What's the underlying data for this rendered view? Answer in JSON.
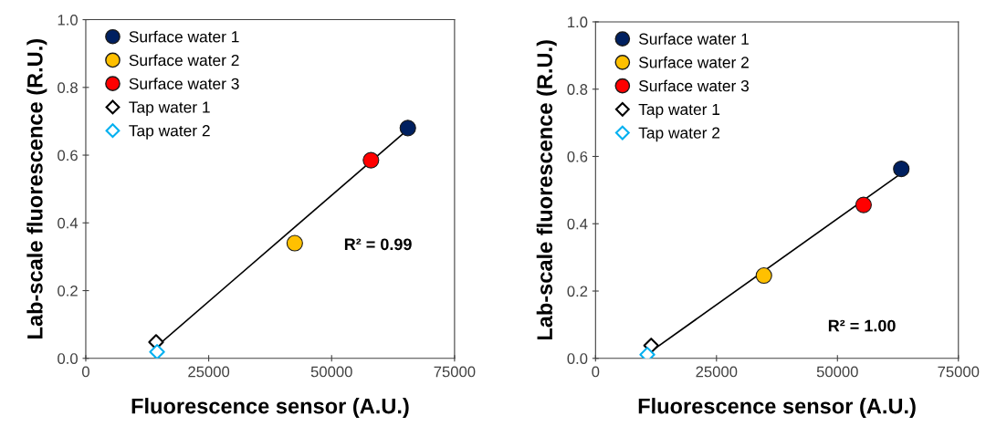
{
  "chart_data": [
    {
      "type": "scatter",
      "xlabel": "Fluorescence sensor (A.U.)",
      "ylabel": "Lab-scale fluorescence (R.U.)",
      "annotations": [
        "R² = 0.99"
      ],
      "xlim": [
        0,
        75000
      ],
      "xticks": [
        0,
        25000,
        50000,
        75000
      ],
      "ylim": [
        0,
        1.0
      ],
      "yticks": [
        {
          "value": 0,
          "label": "0.0"
        },
        {
          "value": 0.2,
          "label": "0.2"
        },
        {
          "value": 0.4,
          "label": "0.4"
        },
        {
          "value": 0.6,
          "label": "0.6"
        },
        {
          "value": 0.8,
          "label": "0.8"
        },
        {
          "value": 1.0,
          "label": "1.0"
        }
      ],
      "grid": false,
      "legend": "top left",
      "series": [
        {
          "type": "line",
          "color": "#000000",
          "marker": "none",
          "line_style": "solid",
          "x": [
            14400,
            65200
          ],
          "values": [
            0.035,
            0.672
          ]
        },
        {
          "name": "Surface water 1",
          "color": "#002060",
          "marker": "circle",
          "x": [
            65500
          ],
          "values": [
            0.68
          ]
        },
        {
          "name": "Surface water 2",
          "color": "#ffc000",
          "marker": "circle",
          "x": [
            42500
          ],
          "values": [
            0.34
          ]
        },
        {
          "name": "Surface water 3",
          "color": "#ff0000",
          "marker": "circle",
          "x": [
            58000
          ],
          "values": [
            0.585
          ]
        },
        {
          "name": "Tap water 1",
          "color": "#000000",
          "marker": "diamond",
          "x": [
            14300
          ],
          "values": [
            0.048
          ]
        },
        {
          "name": "Tap water 2",
          "color": "#00b0f0",
          "marker": "diamond",
          "x": [
            14500
          ],
          "values": [
            0.019
          ]
        }
      ]
    },
    {
      "type": "scatter",
      "xlabel": "Fluorescence sensor (A.U.)",
      "ylabel": "Lab-scale fluorescence (R.U.)",
      "annotations": [
        "R² = 1.00"
      ],
      "xlim": [
        0,
        75000
      ],
      "xticks": [
        0,
        25000,
        50000,
        75000
      ],
      "ylim": [
        0,
        1.0
      ],
      "yticks": [
        {
          "value": 0,
          "label": "0.0"
        },
        {
          "value": 0.2,
          "label": "0.2"
        },
        {
          "value": 0.4,
          "label": "0.4"
        },
        {
          "value": 0.6,
          "label": "0.6"
        },
        {
          "value": 0.8,
          "label": "0.8"
        },
        {
          "value": 1.0,
          "label": "1.0"
        }
      ],
      "grid": false,
      "legend": "top left",
      "series": [
        {
          "type": "line",
          "color": "#000000",
          "marker": "none",
          "line_style": "solid",
          "x": [
            11200,
            63100
          ],
          "values": [
            0.018,
            0.549
          ]
        },
        {
          "name": "Surface water 1",
          "color": "#002060",
          "marker": "circle",
          "x": [
            63200
          ],
          "values": [
            0.563
          ]
        },
        {
          "name": "Surface water 2",
          "color": "#ffc000",
          "marker": "circle",
          "x": [
            34800
          ],
          "values": [
            0.246
          ]
        },
        {
          "name": "Surface water 3",
          "color": "#ff0000",
          "marker": "circle",
          "x": [
            55400
          ],
          "values": [
            0.456
          ]
        },
        {
          "name": "Tap water 1",
          "color": "#000000",
          "marker": "diamond",
          "x": [
            11500
          ],
          "values": [
            0.038
          ]
        },
        {
          "name": "Tap water 2",
          "color": "#00b0f0",
          "marker": "diamond",
          "x": [
            10700
          ],
          "values": [
            0.011
          ]
        }
      ]
    }
  ]
}
